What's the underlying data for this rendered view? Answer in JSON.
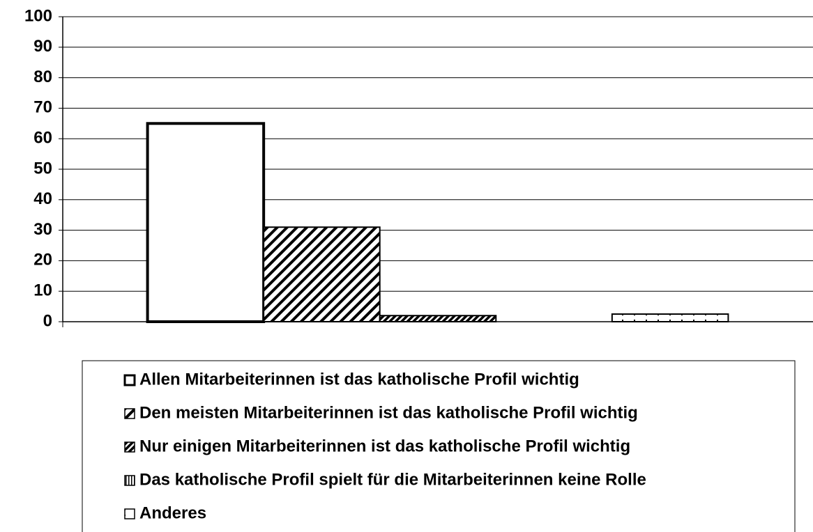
{
  "chart_data": {
    "type": "bar",
    "categories": [
      null
    ],
    "series": [
      {
        "name": "Allen Mitarbeiterinnen ist das katholische  Profil wichtig",
        "color": "#ffffff",
        "pattern": "solid",
        "values": [
          65
        ]
      },
      {
        "name": "Den meisten Mitarbeiterinnen ist das katholische Profil wichtig",
        "color": "#ffffff",
        "pattern": "diagonal",
        "values": [
          31
        ]
      },
      {
        "name": "Nur einigen Mitarbeiterinnen ist das katholische Profil wichtig",
        "color": "#ffffff",
        "pattern": "dense-diagonal",
        "values": [
          2
        ]
      },
      {
        "name": "Das katholische Profil spielt für die Mitarbeiterinnen keine Rolle",
        "color": "#ffffff",
        "pattern": "vertical",
        "values": [
          0
        ]
      },
      {
        "name": "Anderes",
        "color": "#ffffff",
        "pattern": "dotted",
        "values": [
          2.5
        ]
      }
    ],
    "ylim": [
      0,
      100
    ],
    "yticks": [
      0,
      10,
      20,
      30,
      40,
      50,
      60,
      70,
      80,
      90,
      100
    ],
    "grid": true,
    "legend": "bottom"
  }
}
